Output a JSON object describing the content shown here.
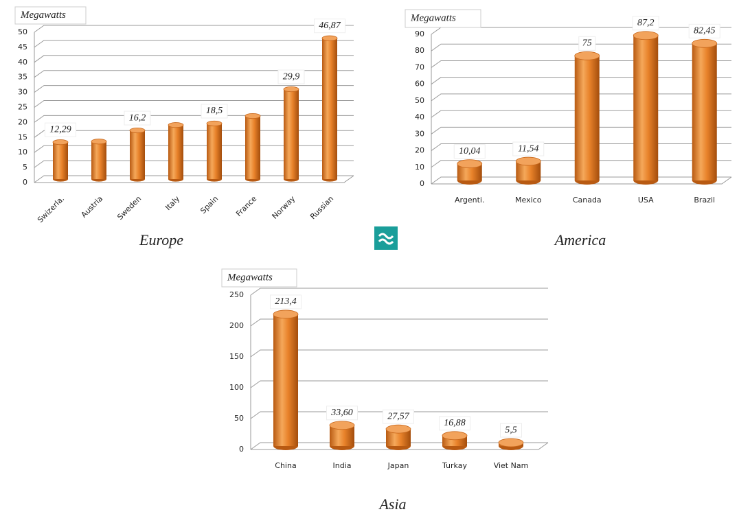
{
  "chart_data": [
    {
      "type": "bar",
      "title": "Europe",
      "y_label": "Megawatts",
      "categories": [
        "Swizerla.",
        "Austria",
        "Sweden",
        "Italy",
        "Spain",
        "France",
        "Norway",
        "Russian"
      ],
      "values": [
        12.29,
        12.5,
        16.2,
        18,
        18.5,
        21,
        29.9,
        46.87
      ],
      "value_labels": [
        "12,29",
        null,
        "16,2",
        null,
        "18,5",
        null,
        "29,9",
        "46,87"
      ],
      "color": "#e8822a",
      "ylim": [
        0,
        50
      ],
      "yticks": [
        0,
        5,
        10,
        15,
        20,
        25,
        30,
        35,
        40,
        45,
        50
      ],
      "grid": true
    },
    {
      "type": "bar",
      "title": "America",
      "y_label": "Megawatts",
      "categories": [
        "Argenti.",
        "Mexico",
        "Canada",
        "USA",
        "Brazil"
      ],
      "values": [
        10.04,
        11.54,
        75,
        87.2,
        82.45
      ],
      "value_labels": [
        "10,04",
        "11,54",
        "75",
        "87,2",
        "82,45"
      ],
      "color": "#e8822a",
      "ylim": [
        0,
        90
      ],
      "yticks": [
        0,
        10,
        20,
        30,
        40,
        50,
        60,
        70,
        80,
        90
      ],
      "grid": true
    },
    {
      "type": "bar",
      "title": "Asia",
      "y_label": "Megawatts",
      "categories": [
        "China",
        "India",
        "Japan",
        "Turkay",
        "Viet Nam"
      ],
      "values": [
        213.4,
        33.6,
        27.57,
        16.88,
        5.5
      ],
      "value_labels": [
        "213,4",
        "33,60",
        "27,57",
        "16,88",
        "5,5"
      ],
      "color": "#e8822a",
      "ylim": [
        0,
        250
      ],
      "yticks": [
        0,
        50,
        100,
        150,
        200,
        250
      ],
      "grid": true
    }
  ]
}
